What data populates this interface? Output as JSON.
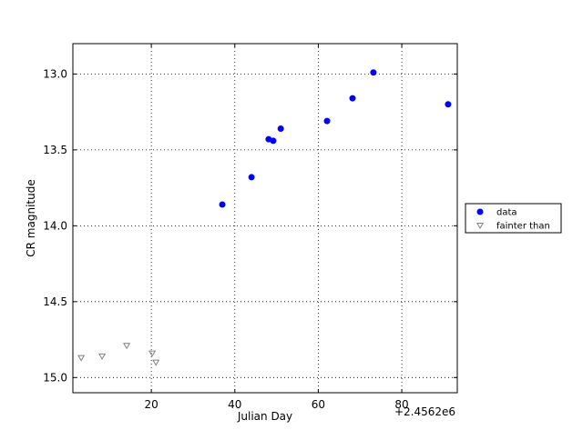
{
  "chart_data": {
    "type": "scatter",
    "x_label": "Julian Day",
    "y_label": "CR magnitude",
    "x_offset_label": "+2.4562e6",
    "xlim": [
      1.2,
      93.3
    ],
    "xticks": [
      20,
      40,
      60,
      80
    ],
    "ylim": [
      12.8,
      15.1
    ],
    "y_inverted": true,
    "yticks": [
      {
        "value": 13,
        "label": "13.0"
      },
      {
        "value": 13.5,
        "label": "13.5"
      },
      {
        "value": 14,
        "label": "14.0"
      },
      {
        "value": 14.5,
        "label": "14.5"
      },
      {
        "value": 15,
        "label": "15.0"
      }
    ],
    "grid": true,
    "legend": "outside right",
    "series": [
      {
        "name": "data",
        "color": "#0000ff",
        "marker": "circle",
        "x": [
          37.0,
          44.0,
          48.1,
          49.2,
          51.0,
          62.1,
          68.2,
          73.2,
          91.1
        ],
        "values": [
          13.86,
          13.68,
          13.43,
          13.44,
          13.36,
          13.31,
          13.16,
          12.99,
          13.2
        ]
      },
      {
        "name": "fainter than",
        "color": "#808080",
        "marker": "triangle-down",
        "x": [
          3.2,
          8.2,
          14.1,
          20.2,
          21.1
        ],
        "values": [
          14.87,
          14.86,
          14.79,
          14.84,
          14.9
        ]
      }
    ]
  }
}
